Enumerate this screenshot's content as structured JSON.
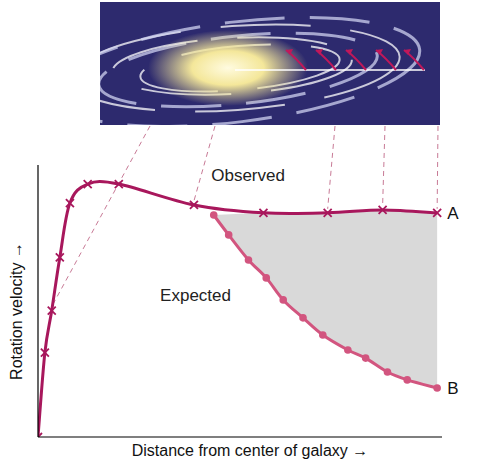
{
  "chart_data": {
    "type": "line",
    "x_label": "Distance from center of galaxy →",
    "y_label": "Rotation velocity →",
    "xlim": [
      0,
      10
    ],
    "ylim": [
      0,
      10
    ],
    "xticks": [],
    "yticks": [],
    "tick_labels": false,
    "grid": false,
    "series": [
      {
        "name": "Observed",
        "color": "#a8175c",
        "marker": "x",
        "line_style": "solid",
        "x": [
          0,
          0.17,
          0.34,
          0.54,
          0.79,
          1.23,
          2.0,
          3.86,
          5.58,
          7.17,
          8.53,
          9.88
        ],
        "values": [
          0,
          3.1,
          4.65,
          6.6,
          8.6,
          9.3,
          9.3,
          8.53,
          8.24,
          8.24,
          8.35,
          8.24
        ]
      },
      {
        "name": "Expected",
        "color": "#d2557f",
        "marker": "circle",
        "line_style": "solid",
        "x": [
          4.35,
          4.72,
          5.21,
          5.65,
          6.07,
          6.56,
          7.05,
          7.67,
          8.11,
          8.65,
          9.14,
          9.88
        ],
        "values": [
          8.16,
          7.43,
          6.51,
          5.85,
          5.04,
          4.38,
          3.75,
          3.2,
          2.9,
          2.39,
          2.1,
          1.8
        ]
      }
    ],
    "annotations": [
      "A",
      "B"
    ]
  }
}
